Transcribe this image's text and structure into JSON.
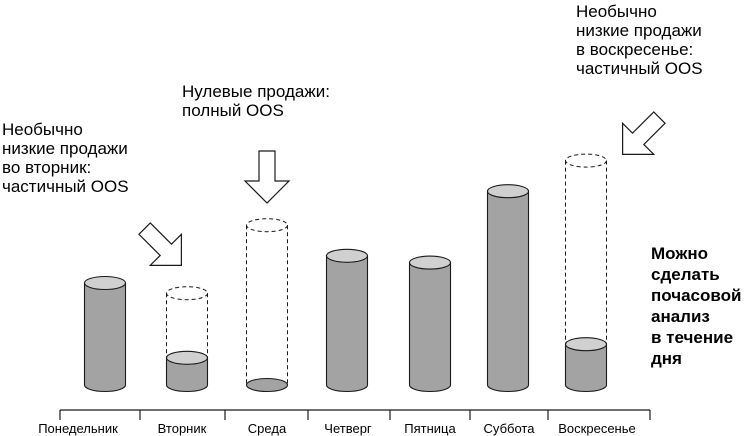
{
  "chart_data": {
    "type": "bar",
    "categories": [
      "Понедельник",
      "Вторник",
      "Среда",
      "Четверг",
      "Пятница",
      "Суббота",
      "Воскресенье"
    ],
    "values": [
      30,
      8,
      0,
      38,
      36,
      57,
      12
    ],
    "expected": [
      null,
      27,
      47,
      null,
      null,
      null,
      66
    ],
    "ylim": [
      0,
      70
    ],
    "annotations": [
      {
        "id": "tuesday",
        "text": "Необычно\nнизкие продажи\nво вторник:\nчастичный OOS"
      },
      {
        "id": "wednesday",
        "text": "Нулевые продажи:\nполный OOS"
      },
      {
        "id": "sunday",
        "text": "Необычно\nнизкие продажи\nв воскресенье:\nчастичный OOS"
      }
    ],
    "note": "Можно\nсделать\nпочасовой\nанализ\nв течение\nдня"
  },
  "colors": {
    "bar_fill": "#a3a3a3",
    "bar_top": "#d0d0d0",
    "outline": "#1a1a1a",
    "arrow_fill": "#ffffff"
  }
}
